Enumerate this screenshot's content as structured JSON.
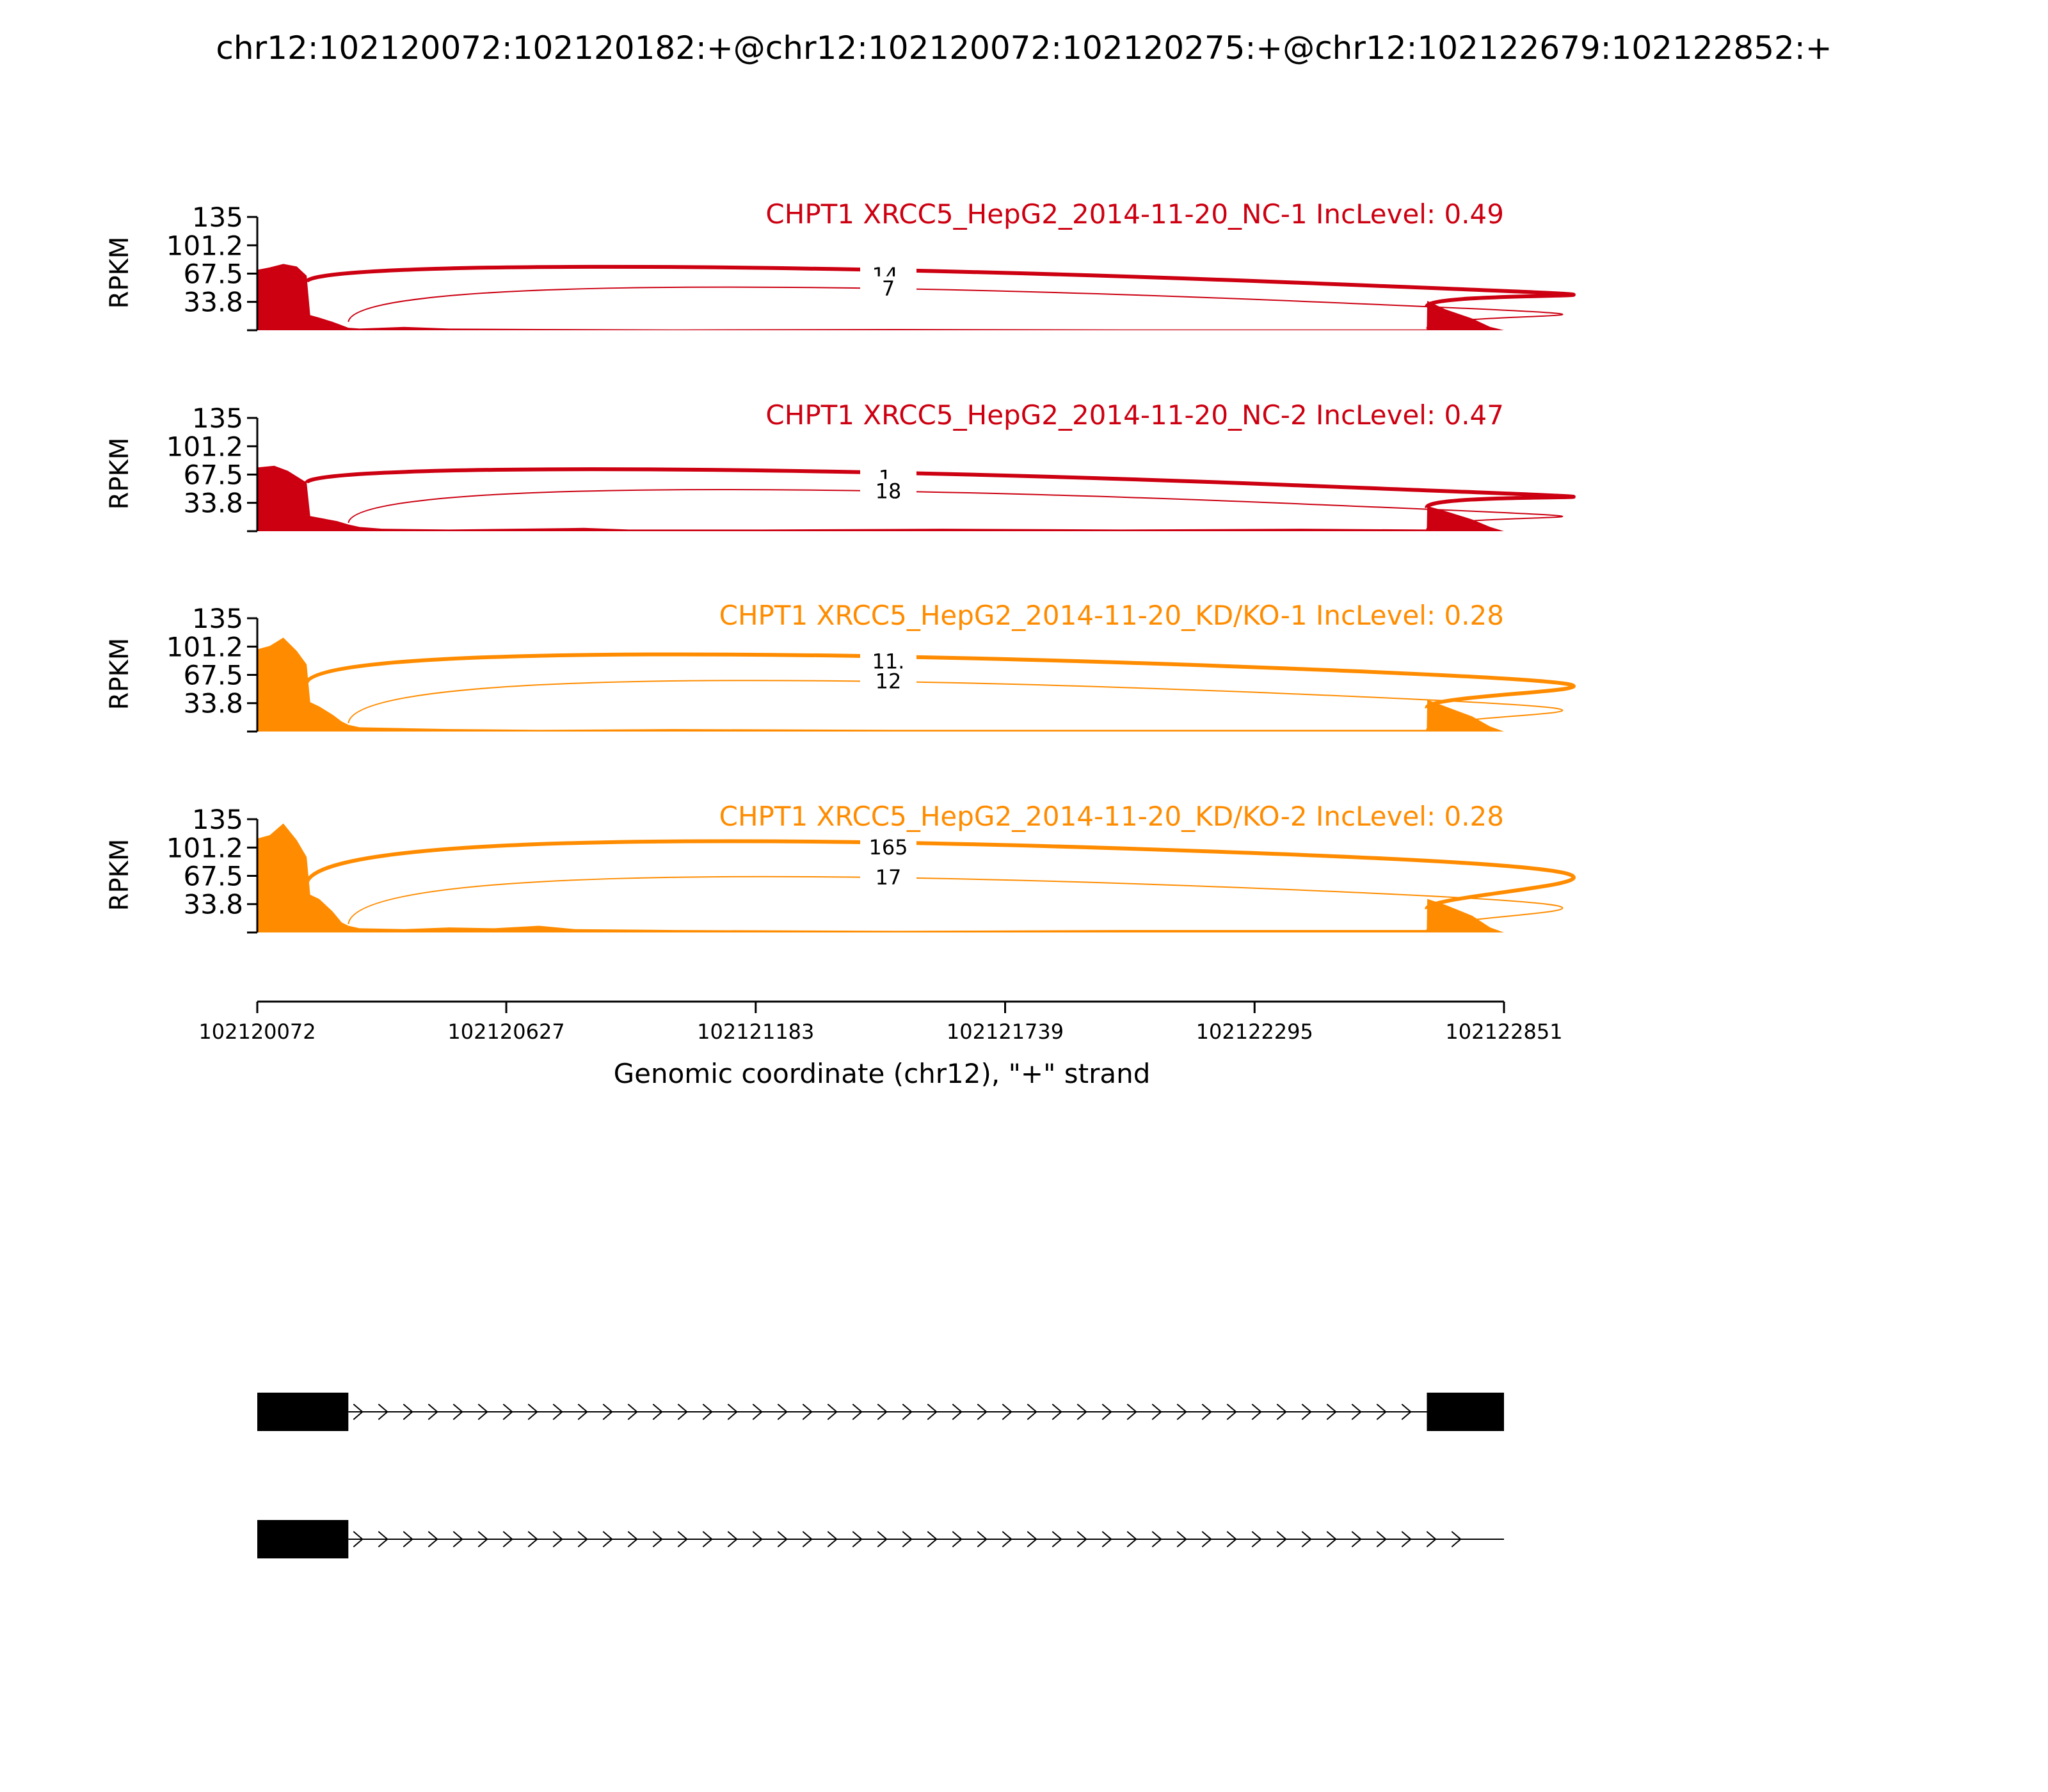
{
  "title": "chr12:102120072:102120182:+@chr12:102120072:102120275:+@chr12:102122679:102122852:+",
  "chart_data": {
    "type": "area",
    "xlabel": "Genomic coordinate (chr12), \"+\" strand",
    "ylabel": "RPKM",
    "xlim": [
      102120072,
      102122851
    ],
    "ylim": [
      0,
      135
    ],
    "xticks": [
      "102120072",
      "102120627",
      "102121183",
      "102121739",
      "102122295",
      "102122851"
    ],
    "yticks": [
      "135",
      "101.2",
      "67.5",
      "33.8"
    ],
    "tracks": [
      {
        "label": "CHPT1 XRCC5_HepG2_2014-11-20_NC-1 IncLevel: 0.49",
        "color": "#cc0011",
        "coverage": [
          [
            102120072,
            72
          ],
          [
            102120100,
            75
          ],
          [
            102120130,
            79
          ],
          [
            102120160,
            76
          ],
          [
            102120182,
            65
          ],
          [
            102120190,
            18
          ],
          [
            102120210,
            15
          ],
          [
            102120240,
            10
          ],
          [
            102120260,
            6
          ],
          [
            102120275,
            3
          ],
          [
            102120300,
            2
          ],
          [
            102120400,
            4
          ],
          [
            102120500,
            2
          ],
          [
            102120700,
            1.5
          ],
          [
            102121000,
            1
          ],
          [
            102121500,
            1.5
          ],
          [
            102122000,
            1
          ],
          [
            102122500,
            1
          ],
          [
            102122679,
            1
          ],
          [
            102122680,
            35
          ],
          [
            102122720,
            25
          ],
          [
            102122780,
            14
          ],
          [
            102122820,
            4
          ],
          [
            102122851,
            0
          ]
        ],
        "junctions": [
          {
            "from": 102120182,
            "to": 102122679,
            "count": "14.",
            "peak": 74
          },
          {
            "from": 102120275,
            "to": 102122679,
            "count": "7",
            "peak": 52
          }
        ]
      },
      {
        "label": "CHPT1 XRCC5_HepG2_2014-11-20_NC-2 IncLevel: 0.47",
        "color": "#cc0011",
        "coverage": [
          [
            102120072,
            76
          ],
          [
            102120110,
            78
          ],
          [
            102120140,
            72
          ],
          [
            102120182,
            58
          ],
          [
            102120190,
            18
          ],
          [
            102120220,
            15
          ],
          [
            102120250,
            12
          ],
          [
            102120275,
            8
          ],
          [
            102120300,
            5
          ],
          [
            102120350,
            3
          ],
          [
            102120500,
            2
          ],
          [
            102120800,
            4
          ],
          [
            102120900,
            2
          ],
          [
            102121200,
            2
          ],
          [
            102121600,
            3
          ],
          [
            102122000,
            2
          ],
          [
            102122400,
            3
          ],
          [
            102122679,
            2
          ],
          [
            102122680,
            30
          ],
          [
            102122720,
            24
          ],
          [
            102122780,
            14
          ],
          [
            102122820,
            5
          ],
          [
            102122851,
            0
          ]
        ],
        "junctions": [
          {
            "from": 102120182,
            "to": 102122679,
            "count": "1.",
            "peak": 72
          },
          {
            "from": 102120275,
            "to": 102122679,
            "count": "18",
            "peak": 50
          }
        ]
      },
      {
        "label": "CHPT1 XRCC5_HepG2_2014-11-20_KD/KO-1 IncLevel: 0.28",
        "color": "#ff8c00",
        "coverage": [
          [
            102120072,
            98
          ],
          [
            102120100,
            102
          ],
          [
            102120130,
            112
          ],
          [
            102120160,
            96
          ],
          [
            102120182,
            80
          ],
          [
            102120190,
            35
          ],
          [
            102120210,
            30
          ],
          [
            102120240,
            20
          ],
          [
            102120260,
            12
          ],
          [
            102120275,
            8
          ],
          [
            102120300,
            5
          ],
          [
            102120400,
            4
          ],
          [
            102120500,
            3
          ],
          [
            102120700,
            2
          ],
          [
            102121000,
            3
          ],
          [
            102121500,
            2
          ],
          [
            102122000,
            2
          ],
          [
            102122500,
            2
          ],
          [
            102122679,
            2
          ],
          [
            102122680,
            38
          ],
          [
            102122720,
            30
          ],
          [
            102122780,
            18
          ],
          [
            102122820,
            6
          ],
          [
            102122851,
            0
          ]
        ],
        "junctions": [
          {
            "from": 102120182,
            "to": 102122679,
            "count": "11.",
            "peak": 92
          },
          {
            "from": 102120275,
            "to": 102122679,
            "count": "12",
            "peak": 62
          }
        ]
      },
      {
        "label": "CHPT1 XRCC5_HepG2_2014-11-20_KD/KO-2 IncLevel: 0.28",
        "color": "#ff8c00",
        "coverage": [
          [
            102120072,
            112
          ],
          [
            102120100,
            116
          ],
          [
            102120130,
            130
          ],
          [
            102120160,
            110
          ],
          [
            102120182,
            90
          ],
          [
            102120190,
            45
          ],
          [
            102120210,
            40
          ],
          [
            102120240,
            25
          ],
          [
            102120260,
            12
          ],
          [
            102120275,
            8
          ],
          [
            102120300,
            5
          ],
          [
            102120400,
            4
          ],
          [
            102120500,
            6
          ],
          [
            102120600,
            5
          ],
          [
            102120700,
            8
          ],
          [
            102120780,
            4
          ],
          [
            102121000,
            3
          ],
          [
            102121500,
            2
          ],
          [
            102122000,
            3
          ],
          [
            102122500,
            3
          ],
          [
            102122679,
            3
          ],
          [
            102122680,
            40
          ],
          [
            102122720,
            33
          ],
          [
            102122780,
            20
          ],
          [
            102122820,
            6
          ],
          [
            102122851,
            0
          ]
        ],
        "junctions": [
          {
            "from": 102120182,
            "to": 102122679,
            "count": "165",
            "peak": 110
          },
          {
            "from": 102120275,
            "to": 102122679,
            "count": "17",
            "peak": 68
          }
        ]
      }
    ],
    "isoforms": [
      {
        "exons": [
          [
            102120072,
            102120275
          ],
          [
            102122679,
            102122851
          ]
        ]
      },
      {
        "exons": [
          [
            102120072,
            102120275
          ]
        ]
      }
    ]
  }
}
